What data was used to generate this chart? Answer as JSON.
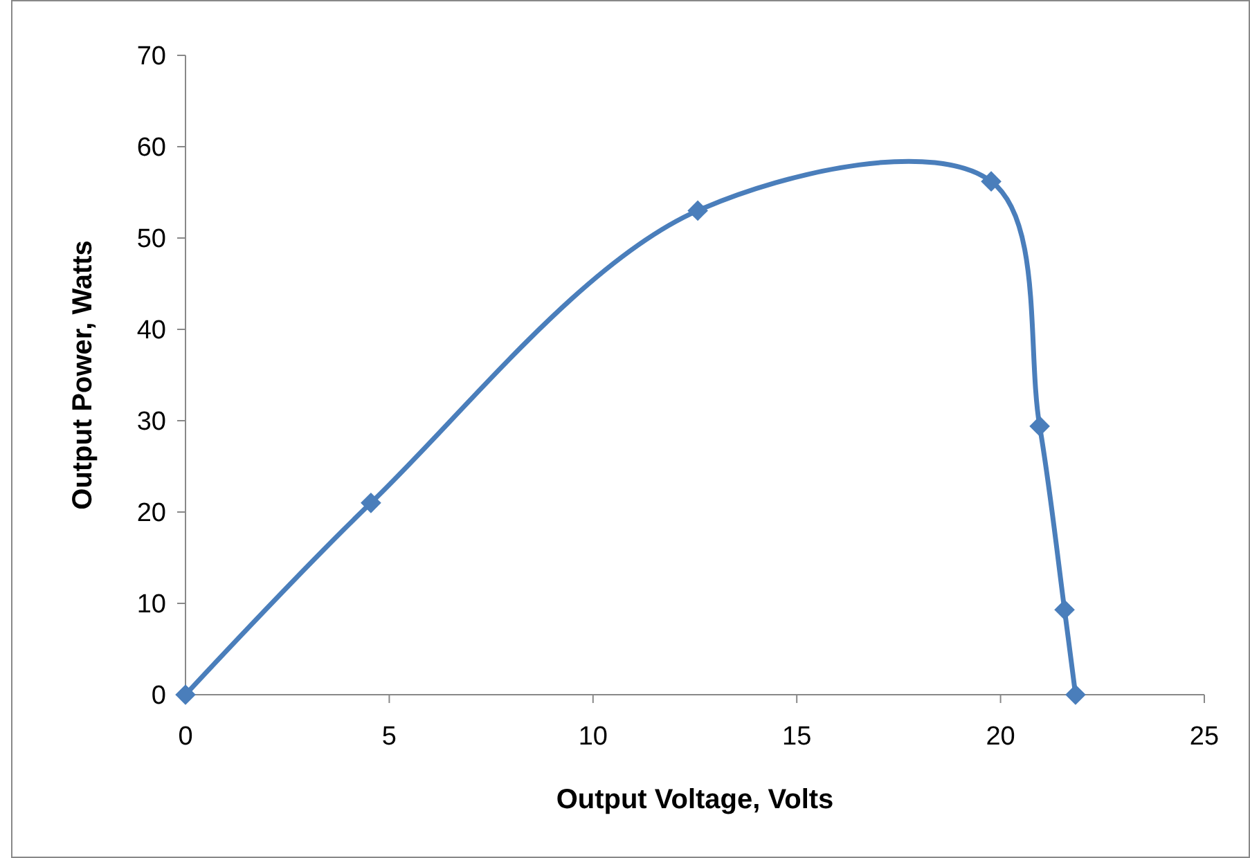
{
  "chart_data": {
    "type": "line",
    "xlabel": "Output Voltage, Volts",
    "ylabel": "Output Power, Watts",
    "x": [
      0,
      4.55,
      12.57,
      19.77,
      20.96,
      21.57,
      21.84
    ],
    "series": [
      {
        "color": "#4a7ebb",
        "values": [
          0,
          21,
          53,
          56.2,
          29.4,
          9.3,
          0
        ]
      }
    ],
    "xlim": [
      0,
      25
    ],
    "xticks": [
      0,
      5,
      10,
      15,
      20,
      25
    ],
    "ylim": [
      0,
      70
    ],
    "yticks": [
      0,
      10,
      20,
      30,
      40,
      50,
      60,
      70
    ],
    "grid": false,
    "marker": "diamond",
    "line_style": "solid"
  }
}
